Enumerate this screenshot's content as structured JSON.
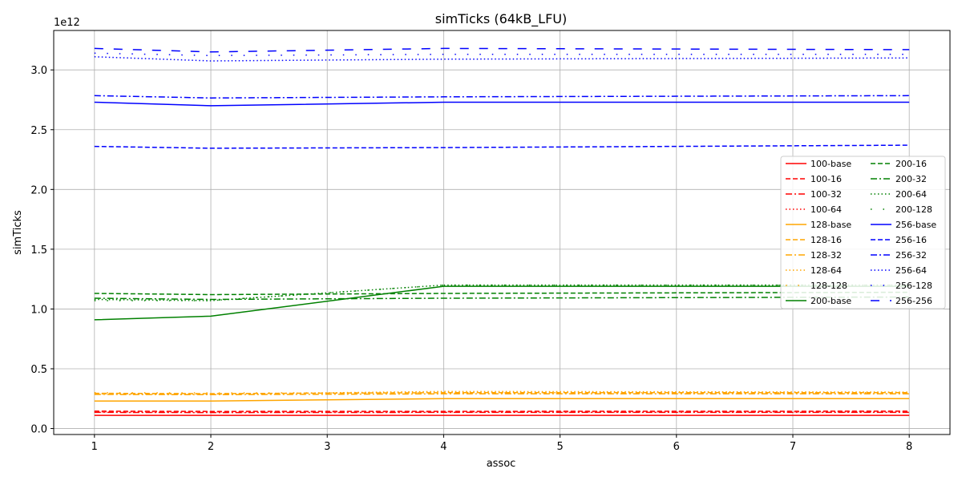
{
  "chart_data": {
    "type": "line",
    "title": "simTicks (64kB_LFU)",
    "xlabel": "assoc",
    "ylabel": "simTicks",
    "y_multiplier": "1e12",
    "x_ticks": [
      1,
      2,
      3,
      4,
      5,
      6,
      7,
      8
    ],
    "y_ticks": [
      "0.0",
      "0.5",
      "1.0",
      "1.5",
      "2.0",
      "2.5",
      "3.0"
    ],
    "y_tick_values": [
      0,
      0.5,
      1.0,
      1.5,
      2.0,
      2.5,
      3.0
    ],
    "xlim": [
      0.65,
      8.35
    ],
    "ylim": [
      -0.05,
      3.33
    ],
    "grid": true,
    "legend_position": "center-right",
    "x": [
      1,
      2,
      4,
      8
    ],
    "series": [
      {
        "name": "100-base",
        "color": "#ff0000",
        "dash": "solid",
        "values": [
          0.11,
          0.11,
          0.11,
          0.11
        ]
      },
      {
        "name": "100-16",
        "color": "#ff0000",
        "dash": "dashed",
        "values": [
          0.145,
          0.143,
          0.144,
          0.145
        ]
      },
      {
        "name": "100-32",
        "color": "#ff0000",
        "dash": "dashdot",
        "values": [
          0.135,
          0.134,
          0.135,
          0.135
        ]
      },
      {
        "name": "100-64",
        "color": "#ff0000",
        "dash": "dotted",
        "values": [
          0.14,
          0.139,
          0.14,
          0.14
        ]
      },
      {
        "name": "128-base",
        "color": "#ffa500",
        "dash": "solid",
        "values": [
          0.23,
          0.23,
          0.25,
          0.25
        ]
      },
      {
        "name": "128-16",
        "color": "#ffa500",
        "dash": "dashed",
        "values": [
          0.295,
          0.292,
          0.3,
          0.3
        ]
      },
      {
        "name": "128-32",
        "color": "#ffa500",
        "dash": "dashdot",
        "values": [
          0.285,
          0.283,
          0.29,
          0.29
        ]
      },
      {
        "name": "128-64",
        "color": "#ffa500",
        "dash": "dotted",
        "values": [
          0.29,
          0.288,
          0.31,
          0.305
        ]
      },
      {
        "name": "128-128",
        "color": "#ffa500",
        "dash": "loosedot",
        "values": [
          0.3,
          0.298,
          0.3,
          0.3
        ]
      },
      {
        "name": "200-base",
        "color": "#008000",
        "dash": "solid",
        "values": [
          0.91,
          0.94,
          1.19,
          1.19
        ]
      },
      {
        "name": "200-16",
        "color": "#008000",
        "dash": "dashed",
        "values": [
          1.13,
          1.12,
          1.13,
          1.14
        ]
      },
      {
        "name": "200-32",
        "color": "#008000",
        "dash": "dashdot",
        "values": [
          1.09,
          1.08,
          1.09,
          1.1
        ]
      },
      {
        "name": "200-64",
        "color": "#008000",
        "dash": "dotted",
        "values": [
          1.08,
          1.07,
          1.2,
          1.2
        ]
      },
      {
        "name": "200-128",
        "color": "#008000",
        "dash": "loosedot",
        "values": [
          1.07,
          1.07,
          1.2,
          1.2
        ]
      },
      {
        "name": "256-base",
        "color": "#0000ff",
        "dash": "solid",
        "values": [
          2.73,
          2.7,
          2.73,
          2.73
        ]
      },
      {
        "name": "256-16",
        "color": "#0000ff",
        "dash": "dashed",
        "values": [
          2.36,
          2.345,
          2.35,
          2.37
        ]
      },
      {
        "name": "256-32",
        "color": "#0000ff",
        "dash": "dashdot",
        "values": [
          2.785,
          2.765,
          2.775,
          2.785
        ]
      },
      {
        "name": "256-64",
        "color": "#0000ff",
        "dash": "dotted",
        "values": [
          3.11,
          3.075,
          3.09,
          3.1
        ]
      },
      {
        "name": "256-128",
        "color": "#0000ff",
        "dash": "loosedot",
        "values": [
          3.14,
          3.12,
          3.13,
          3.13
        ]
      },
      {
        "name": "256-256",
        "color": "#0000ff",
        "dash": "longdash",
        "values": [
          3.18,
          3.15,
          3.18,
          3.17
        ]
      }
    ]
  }
}
